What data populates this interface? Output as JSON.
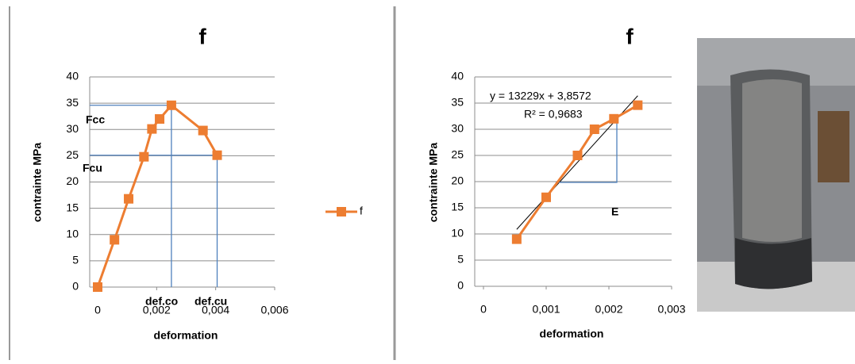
{
  "chart_data": [
    {
      "type": "line",
      "title": "f",
      "x_label": "deformation",
      "y_label": "contrainte MPa",
      "x": [
        0,
        0.00057,
        0.00105,
        0.00157,
        0.00184,
        0.0021,
        0.0025,
        0.00357,
        0.00405
      ],
      "series": [
        {
          "name": "f",
          "color": "#ed7d31",
          "values": [
            0,
            9,
            16.8,
            24.8,
            30.1,
            32,
            34.6,
            29.8,
            25.1
          ]
        }
      ],
      "xlim": [
        0,
        0.006
      ],
      "xticks": [
        0,
        {
          "value": 0.002,
          "label": "0,002"
        },
        {
          "value": 0.004,
          "label": "0,004"
        },
        {
          "value": 0.006,
          "label": "0,006"
        }
      ],
      "ylim": [
        0,
        40
      ],
      "yticks": [
        0,
        5,
        10,
        15,
        20,
        25,
        30,
        35,
        40
      ],
      "grid": true,
      "legend": "right",
      "annotations": [
        "Fcc",
        "Fcu",
        "def.co",
        "def.cu"
      ]
    },
    {
      "type": "line",
      "title": "f",
      "x_label": "deformation",
      "y_label": "contrainte MPa",
      "x": [
        0.00053,
        0.001,
        0.0015,
        0.00177,
        0.00208,
        0.00246
      ],
      "series": [
        {
          "color": "#ed7d31",
          "values": [
            9,
            17,
            25,
            30,
            32,
            34.6
          ]
        }
      ],
      "xlim": [
        0,
        0.003
      ],
      "xticks": [
        0,
        {
          "value": 0.001,
          "label": "0,001"
        },
        {
          "value": 0.002,
          "label": "0,002"
        },
        {
          "value": 0.003,
          "label": "0,003"
        }
      ],
      "ylim": [
        0,
        40
      ],
      "yticks": [
        0,
        5,
        10,
        15,
        20,
        25,
        30,
        35,
        40
      ],
      "grid": true,
      "trendline": {
        "slope": 13229,
        "intercept": 3.8572,
        "equation": "y = 13229x + 3,8572",
        "r2": 0.9683,
        "r2_label": "R² = 0,9683"
      },
      "annotations": [
        "E"
      ]
    }
  ]
}
